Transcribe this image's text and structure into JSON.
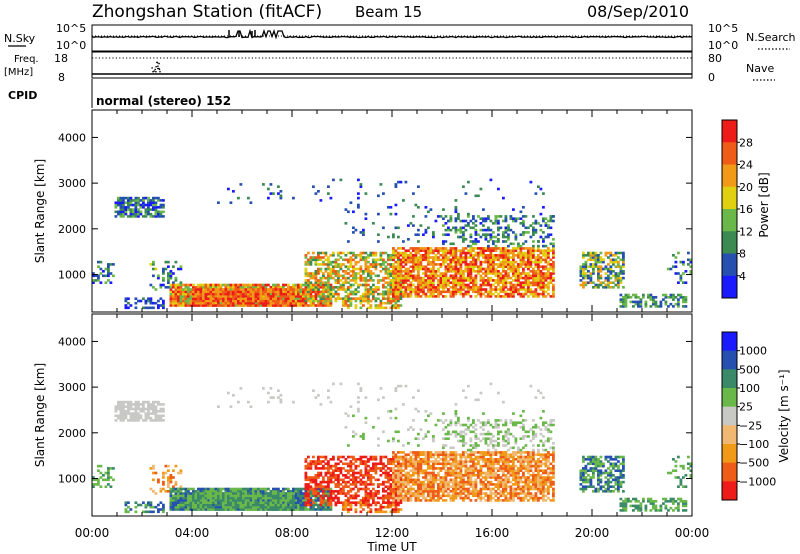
{
  "header": {
    "station": "Zhongshan Station (fitACF)",
    "beam": "Beam 15",
    "date": "08/Sep/2010"
  },
  "top_panels": {
    "nsky_label": "N.Sky",
    "nsearch_label": "N.Search",
    "nsky_ticks": [
      "10^5",
      "10^0"
    ],
    "nsearch_ticks": [
      "10^5",
      "10^0"
    ],
    "freq_label_top": "Freq.",
    "freq_label_bottom": "[MHz]",
    "freq_ticks": [
      "18",
      "8"
    ],
    "nave_label": "Nave",
    "nave_ticks": [
      "80",
      "0"
    ],
    "cpid_label": "CPID",
    "cpid_value": "normal (stereo) 152"
  },
  "colors": {
    "power": [
      "#1a1aff",
      "#2550b0",
      "#3a8a52",
      "#6ab84a",
      "#e0d010",
      "#f09a18",
      "#ee5c18",
      "#ee1c18"
    ],
    "velocity": [
      "#ee1c18",
      "#ee5c18",
      "#f09a18",
      "#f0b870",
      "#c8c8c4",
      "#6ab84a",
      "#3a8a6a",
      "#2550b0",
      "#1a1aff"
    ]
  },
  "chart_data": [
    {
      "type": "heatmap",
      "name": "power",
      "ylabel": "Slant Range [km]",
      "colorbar_label": "Power [dB]",
      "colorbar_ticks": [
        "28",
        "24",
        "20",
        "16",
        "12",
        "8",
        "4"
      ],
      "x_range_hours": [
        0,
        24
      ],
      "ylim": [
        180,
        4600
      ],
      "yticks": [
        "1000",
        "2000",
        "3000",
        "4000"
      ],
      "xticks": [
        "00:00",
        "04:00",
        "08:00",
        "12:00",
        "16:00",
        "20:00",
        "00:00"
      ],
      "xlabel": ""
    },
    {
      "type": "heatmap",
      "name": "velocity",
      "ylabel": "Slant Range [km]",
      "colorbar_label": "Velocity [m s⁻¹]",
      "colorbar_ticks": [
        "1000",
        "500",
        "100",
        "25",
        "−25",
        "−100",
        "−500",
        "−1000"
      ],
      "x_range_hours": [
        0,
        24
      ],
      "ylim": [
        180,
        4600
      ],
      "yticks": [
        "1000",
        "2000",
        "3000",
        "4000"
      ],
      "xticks": [
        "00:00",
        "04:00",
        "08:00",
        "12:00",
        "16:00",
        "20:00",
        "00:00"
      ],
      "xlabel": "Time UT"
    }
  ]
}
